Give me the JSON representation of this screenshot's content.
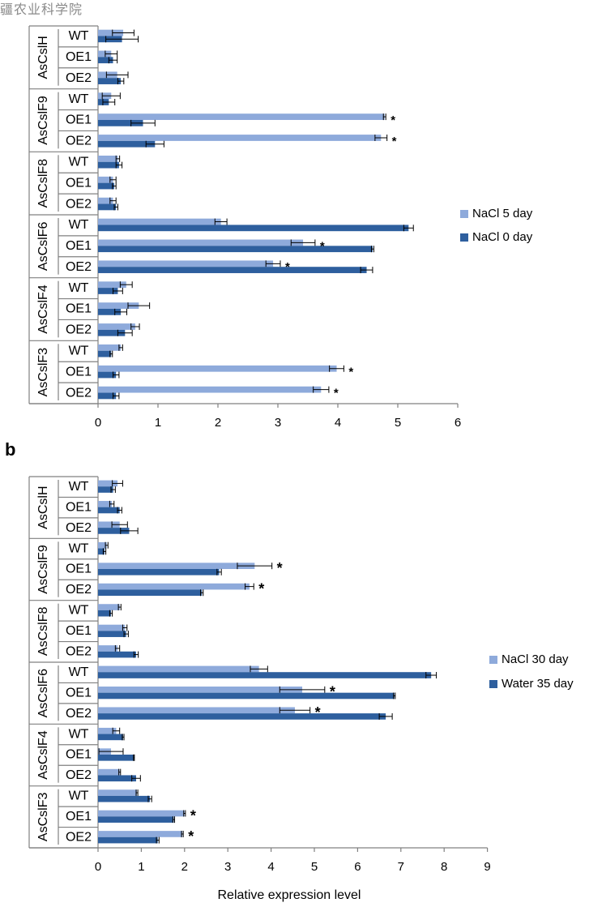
{
  "watermark": "疆农业科学院",
  "colors": {
    "light": "#8eaadb",
    "dark": "#2e5f9e",
    "axis": "#808080",
    "text": "#000000"
  },
  "panel_labels": [
    "",
    "b"
  ],
  "chart_data": [
    {
      "type": "bar",
      "orientation": "horizontal",
      "xlim": [
        0,
        6
      ],
      "xticks": [
        0,
        1,
        2,
        3,
        4,
        5,
        6
      ],
      "xlabel": "",
      "grid": false,
      "legend_position": "right",
      "groups": [
        "AsCslH",
        "AsCslF9",
        "AsCslF8",
        "AsCslF6",
        "AsCslF4",
        "AsCslF3"
      ],
      "categories": [
        "WT",
        "OE1",
        "OE2"
      ],
      "series": [
        {
          "name": "NaCl 5 day",
          "values": [
            [
              0.42,
              0.22,
              0.32
            ],
            [
              0.22,
              4.78,
              4.72
            ],
            [
              0.33,
              0.25,
              0.25
            ],
            [
              2.05,
              3.42,
              2.92
            ],
            [
              0.47,
              0.68,
              0.62
            ],
            [
              0.38,
              3.98,
              3.72
            ]
          ],
          "errors": [
            [
              0.18,
              0.1,
              0.18
            ],
            [
              0.15,
              0.02,
              0.1
            ],
            [
              0.03,
              0.05,
              0.05
            ],
            [
              0.1,
              0.2,
              0.12
            ],
            [
              0.1,
              0.18,
              0.07
            ],
            [
              0.03,
              0.12,
              0.13
            ]
          ]
        },
        {
          "name": "NaCl 0 day",
          "values": [
            [
              0.4,
              0.25,
              0.38
            ],
            [
              0.18,
              0.75,
              0.95
            ],
            [
              0.35,
              0.27,
              0.3
            ],
            [
              5.18,
              4.58,
              4.48
            ],
            [
              0.33,
              0.38,
              0.45
            ],
            [
              0.22,
              0.3,
              0.3
            ]
          ],
          "errors": [
            [
              0.27,
              0.07,
              0.05
            ],
            [
              0.1,
              0.2,
              0.15
            ],
            [
              0.05,
              0.03,
              0.03
            ],
            [
              0.08,
              0.02,
              0.1
            ],
            [
              0.08,
              0.1,
              0.12
            ],
            [
              0.02,
              0.05,
              0.05
            ]
          ]
        }
      ],
      "annotations": [
        {
          "group": 1,
          "category": 1,
          "text": "*"
        },
        {
          "group": 1,
          "category": 2,
          "text": "*"
        },
        {
          "group": 3,
          "category": 1,
          "text": "*"
        },
        {
          "group": 3,
          "category": 2,
          "text": "*"
        },
        {
          "group": 5,
          "category": 1,
          "text": "*"
        },
        {
          "group": 5,
          "category": 2,
          "text": "*"
        }
      ]
    },
    {
      "type": "bar",
      "orientation": "horizontal",
      "xlim": [
        0,
        9
      ],
      "xticks": [
        0,
        1,
        2,
        3,
        4,
        5,
        6,
        7,
        8,
        9
      ],
      "xlabel": "Relative expression level",
      "grid": false,
      "legend_position": "right",
      "groups": [
        "AsCslH",
        "AsCslF9",
        "AsCslF8",
        "AsCslF6",
        "AsCslF4",
        "AsCslF3"
      ],
      "categories": [
        "WT",
        "OE1",
        "OE2"
      ],
      "series": [
        {
          "name": "NaCl 30 day",
          "values": [
            [
              0.45,
              0.32,
              0.5
            ],
            [
              0.2,
              3.62,
              3.5
            ],
            [
              0.5,
              0.62,
              0.45
            ],
            [
              3.72,
              4.72,
              4.55
            ],
            [
              0.42,
              0.3,
              0.5
            ],
            [
              0.9,
              2.0,
              1.95
            ]
          ],
          "errors": [
            [
              0.12,
              0.05,
              0.18
            ],
            [
              0.03,
              0.4,
              0.1
            ],
            [
              0.03,
              0.05,
              0.05
            ],
            [
              0.2,
              0.52,
              0.35
            ],
            [
              0.08,
              0.28,
              0.02
            ],
            [
              0.02,
              0.02,
              0.02
            ]
          ]
        },
        {
          "name": "Water 35 day",
          "values": [
            [
              0.35,
              0.5,
              0.72
            ],
            [
              0.15,
              2.8,
              2.4
            ],
            [
              0.3,
              0.65,
              0.88
            ],
            [
              7.7,
              6.85,
              6.65
            ],
            [
              0.58,
              0.83,
              0.88
            ],
            [
              1.2,
              1.75,
              1.38
            ]
          ],
          "errors": [
            [
              0.05,
              0.05,
              0.2
            ],
            [
              0.03,
              0.05,
              0.03
            ],
            [
              0.03,
              0.05,
              0.05
            ],
            [
              0.12,
              0.02,
              0.15
            ],
            [
              0.02,
              0.01,
              0.1
            ],
            [
              0.04,
              0.02,
              0.03
            ]
          ]
        }
      ],
      "annotations": [
        {
          "group": 1,
          "category": 1,
          "text": "*"
        },
        {
          "group": 1,
          "category": 2,
          "text": "*"
        },
        {
          "group": 3,
          "category": 1,
          "text": "*"
        },
        {
          "group": 3,
          "category": 2,
          "text": "*"
        },
        {
          "group": 5,
          "category": 1,
          "text": "*"
        },
        {
          "group": 5,
          "category": 2,
          "text": "*"
        }
      ]
    }
  ]
}
